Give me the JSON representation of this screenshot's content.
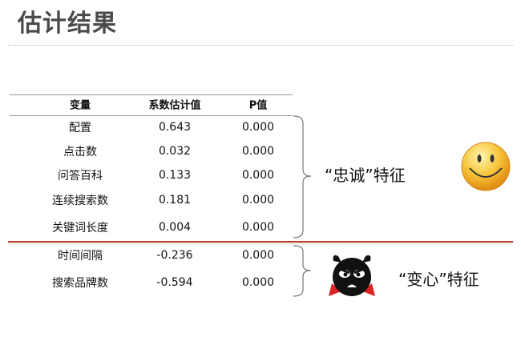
{
  "title": "估计结果",
  "table": {
    "headers": [
      "变量",
      "系数估计值",
      "P值"
    ],
    "rows": [
      [
        "配置",
        "0.643",
        "0.000"
      ],
      [
        "点击数",
        "0.032",
        "0.000"
      ],
      [
        "问答百科",
        "0.133",
        "0.000"
      ],
      [
        "连续搜索数",
        "0.181",
        "0.000"
      ],
      [
        "关键词长度",
        "0.004",
        "0.000"
      ],
      [
        "时间间隔",
        "-0.236",
        "0.000"
      ],
      [
        "搜索品牌数",
        "-0.594",
        "0.000"
      ]
    ]
  },
  "groups": {
    "loyal": "“忠诚”特征",
    "fickle": "“变心”特征"
  },
  "icons": {
    "loyal": "smiley-face-icon",
    "fickle": "angry-devil-icon"
  },
  "colors": {
    "divider": "#c0392b",
    "smiley": "#f5b82e"
  }
}
